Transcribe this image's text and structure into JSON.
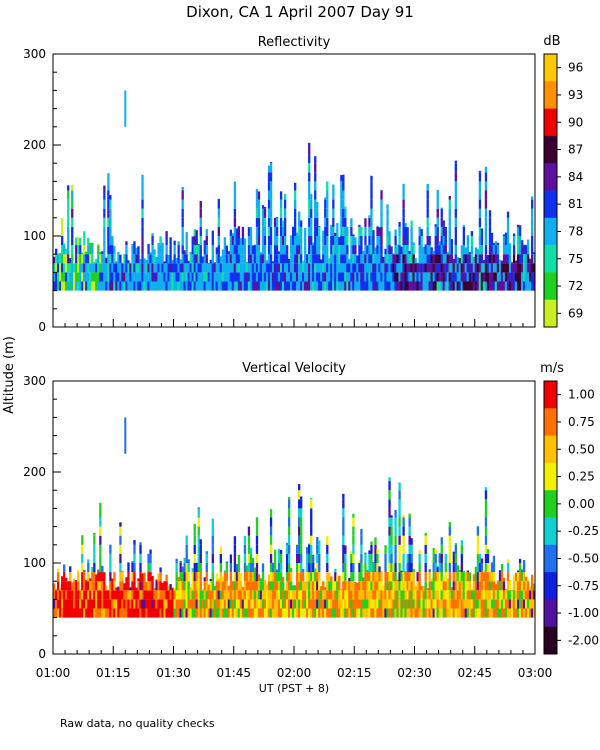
{
  "header": {
    "title": "Dixon, CA   1 April 2007   Day  91"
  },
  "footer": {
    "note": "Raw data, no quality checks"
  },
  "shared_axes": {
    "ylabel": "Altitude  (m)",
    "xlabel": "UT   (PST + 8)",
    "x_tick_labels": [
      "01:00",
      "01:15",
      "01:30",
      "01:45",
      "02:00",
      "02:15",
      "02:30",
      "02:45",
      "03:00"
    ],
    "y_tick_labels": [
      "0",
      "100",
      "200",
      "300"
    ]
  },
  "chart_data": [
    {
      "type": "heatmap",
      "title": "Reflectivity",
      "xlabel": "UT   (PST + 8)",
      "ylabel": "Altitude  (m)",
      "xlim_hours": [
        1.0,
        3.0
      ],
      "ylim": [
        0,
        300
      ],
      "x_ticks": [
        "01:00",
        "01:15",
        "01:30",
        "01:45",
        "02:00",
        "02:15",
        "02:30",
        "02:45",
        "03:00"
      ],
      "y_ticks": [
        0,
        100,
        200,
        300
      ],
      "colorbar": {
        "unit": "dB",
        "ticks": [
          "96",
          "93",
          "90",
          "87",
          "84",
          "81",
          "78",
          "75",
          "72",
          "69"
        ],
        "colors": [
          "#ffc800",
          "#ff9000",
          "#f00000",
          "#3a0030",
          "#5c10a0",
          "#1030f0",
          "#10b0f0",
          "#10e0a8",
          "#20d020",
          "#c8f020"
        ]
      },
      "data_profile": {
        "base_altitude": 40,
        "dense_top_altitude": 100,
        "typical_top_altitude": [
          120,
          160
        ],
        "max_altitude": 220,
        "isolated_echo": {
          "time": "01:18",
          "altitude": [
            220,
            260
          ]
        },
        "dominant_values_db": [
          78,
          81
        ],
        "peak_activity_window": [
          "01:45",
          "02:40"
        ]
      }
    },
    {
      "type": "heatmap",
      "title": "Vertical Velocity",
      "xlabel": "UT   (PST + 8)",
      "ylabel": "Altitude  (m)",
      "xlim_hours": [
        1.0,
        3.0
      ],
      "ylim": [
        0,
        300
      ],
      "x_ticks": [
        "01:00",
        "01:15",
        "01:30",
        "01:45",
        "02:00",
        "02:15",
        "02:30",
        "02:45",
        "03:00"
      ],
      "y_ticks": [
        0,
        100,
        200,
        300
      ],
      "colorbar": {
        "unit": "m/s",
        "ticks": [
          "1.00",
          "0.75",
          "0.50",
          "0.25",
          "0.00",
          "-0.25",
          "-0.50",
          "-0.75",
          "-1.00",
          "-2.00"
        ],
        "colors": [
          "#f00000",
          "#ff7000",
          "#ffc000",
          "#f0f000",
          "#20d020",
          "#10d0d0",
          "#2070f0",
          "#1020e0",
          "#5010a0",
          "#2a0020"
        ]
      },
      "data_profile": {
        "base_altitude": 40,
        "dense_top_altitude": 100,
        "max_altitude": 220,
        "isolated_echo": {
          "time": "01:18",
          "altitude": [
            220,
            260
          ]
        },
        "low_levels_early": "positive (0.75 to 1.00 m/s)",
        "upper_levels": "negative (-0.25 to -0.75 m/s)"
      }
    }
  ]
}
